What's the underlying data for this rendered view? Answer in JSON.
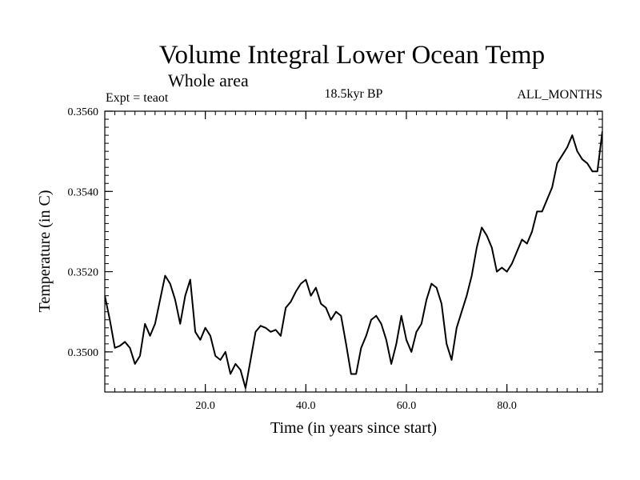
{
  "chart_data": {
    "type": "line",
    "title": "Volume Integral Lower Ocean Temp",
    "subtitle": "Whole area",
    "experiment_label": "Expt = teaot",
    "period_label": "18.5kyr BP",
    "months_label": "ALL_MONTHS",
    "xlabel": "Time (in years since start)",
    "ylabel": "Temperature (in C)",
    "xlim": [
      0,
      99
    ],
    "ylim": [
      0.349,
      0.356
    ],
    "x_ticks": [
      20,
      40,
      60,
      80
    ],
    "x_tick_labels": [
      "20.0",
      "40.0",
      "60.0",
      "80.0"
    ],
    "y_ticks": [
      0.35,
      0.352,
      0.354,
      0.356
    ],
    "y_tick_labels": [
      "0.3500",
      "0.3520",
      "0.3540",
      "0.3560"
    ],
    "x_minor_step": 2,
    "y_minor_step": 0.0002,
    "grid": false,
    "series": [
      {
        "name": "Volume Integral Lower Ocean Temp",
        "x": [
          0,
          1,
          2,
          3,
          4,
          5,
          6,
          7,
          8,
          9,
          10,
          11,
          12,
          13,
          14,
          15,
          16,
          17,
          18,
          19,
          20,
          21,
          22,
          23,
          24,
          25,
          26,
          27,
          28,
          29,
          30,
          31,
          32,
          33,
          34,
          35,
          36,
          37,
          38,
          39,
          40,
          41,
          42,
          43,
          44,
          45,
          46,
          47,
          48,
          49,
          50,
          51,
          52,
          53,
          54,
          55,
          56,
          57,
          58,
          59,
          60,
          61,
          62,
          63,
          64,
          65,
          66,
          67,
          68,
          69,
          70,
          71,
          72,
          73,
          74,
          75,
          76,
          77,
          78,
          79,
          80,
          81,
          82,
          83,
          84,
          85,
          86,
          87,
          88,
          89,
          90,
          91,
          92,
          93,
          94,
          95,
          96,
          97,
          98,
          99
        ],
        "values": [
          0.3514,
          0.3508,
          0.3501,
          0.35015,
          0.35025,
          0.3501,
          0.3497,
          0.3499,
          0.3507,
          0.3504,
          0.3507,
          0.3513,
          0.3519,
          0.3517,
          0.3513,
          0.3507,
          0.3514,
          0.3518,
          0.3505,
          0.3503,
          0.3506,
          0.3504,
          0.3499,
          0.3498,
          0.35,
          0.34945,
          0.3497,
          0.34955,
          0.3491,
          0.3498,
          0.3505,
          0.35065,
          0.3506,
          0.3505,
          0.35055,
          0.3504,
          0.3511,
          0.35125,
          0.3515,
          0.3517,
          0.3518,
          0.3514,
          0.3516,
          0.3512,
          0.3511,
          0.3508,
          0.351,
          0.3509,
          0.3502,
          0.34945,
          0.34945,
          0.3501,
          0.3504,
          0.3508,
          0.3509,
          0.3507,
          0.3503,
          0.3497,
          0.3502,
          0.3509,
          0.3503,
          0.35,
          0.3505,
          0.3507,
          0.3513,
          0.3517,
          0.3516,
          0.3512,
          0.3502,
          0.3498,
          0.3506,
          0.351,
          0.3514,
          0.3519,
          0.3526,
          0.3531,
          0.3529,
          0.3526,
          0.352,
          0.3521,
          0.352,
          0.3522,
          0.3525,
          0.3528,
          0.3527,
          0.353,
          0.3535,
          0.3535,
          0.3538,
          0.3541,
          0.3547,
          0.3549,
          0.3551,
          0.3554,
          0.355,
          0.3548,
          0.3547,
          0.3545,
          0.3545,
          0.3555
        ]
      }
    ]
  }
}
